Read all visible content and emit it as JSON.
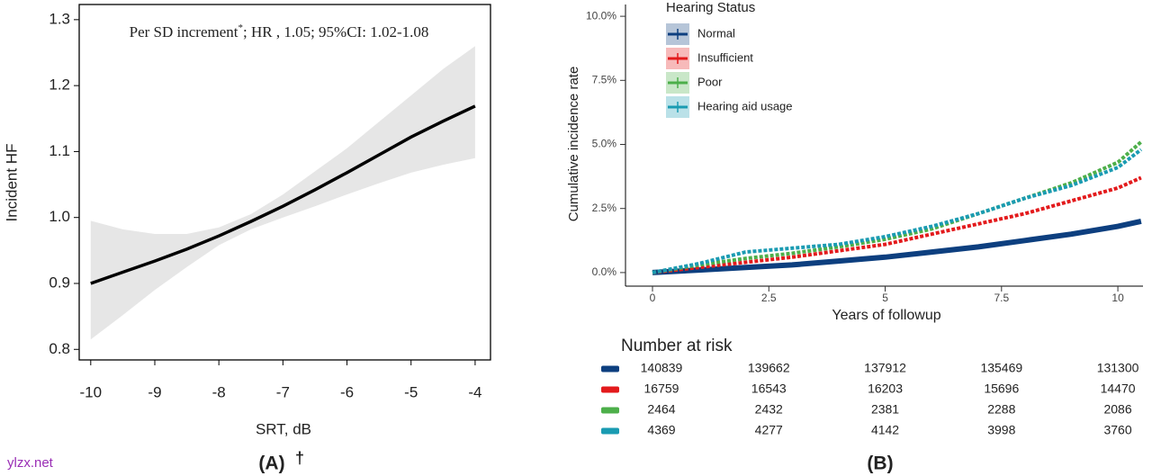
{
  "chart_data": [
    {
      "type": "line",
      "annotation": [
        "Per SD increment",
        "*",
        "; HR , 1.05; 95%CI: 1.02-1.08"
      ],
      "ylabel": "Incident HF",
      "xlabel": "SRT, dB",
      "caption": "(A)",
      "caption_mark": "†",
      "x": [
        -10,
        -9.5,
        -9,
        -8.5,
        -8,
        -7.5,
        -7,
        -6.5,
        -6,
        -5.5,
        -5,
        -4.5,
        -4
      ],
      "series": [
        {
          "color": "#000000",
          "values": [
            0.9,
            0.917,
            0.934,
            0.952,
            0.972,
            0.994,
            1.017,
            1.042,
            1.068,
            1.095,
            1.122,
            1.146,
            1.169
          ]
        }
      ],
      "band": {
        "color": "#e6e6e6",
        "lower": [
          0.815,
          0.852,
          0.89,
          0.925,
          0.958,
          0.982,
          1.0,
          1.017,
          1.035,
          1.052,
          1.068,
          1.08,
          1.09
        ],
        "upper": [
          0.995,
          0.982,
          0.975,
          0.975,
          0.985,
          1.005,
          1.035,
          1.07,
          1.105,
          1.145,
          1.185,
          1.225,
          1.26
        ]
      },
      "xlim": [
        -10.18,
        -3.76
      ],
      "ylim": [
        0.784,
        1.323
      ],
      "xticks": [
        -10,
        -9,
        -8,
        -7,
        -6,
        -5,
        -4
      ],
      "yticks": [
        0.8,
        0.9,
        {
          "value": 1,
          "label": "1.0"
        },
        1.1,
        1.2,
        1.3
      ]
    },
    {
      "type": "line",
      "legend_title": "Hearing Status",
      "ylabel": "Cumulative incidence rate",
      "xlabel": "Years of followup",
      "caption": "(B)",
      "x": [
        0,
        1,
        2,
        3,
        4,
        5,
        6,
        7,
        8,
        9,
        10,
        10.5
      ],
      "series": [
        {
          "name": "Normal",
          "color": "#0d3f7f",
          "values": [
            0,
            0.1,
            0.2,
            0.3,
            0.45,
            0.6,
            0.8,
            1.0,
            1.25,
            1.5,
            1.8,
            2.0
          ]
        },
        {
          "name": "Insufficient",
          "color": "#e31a1c",
          "values": [
            0,
            0.2,
            0.4,
            0.6,
            0.85,
            1.1,
            1.5,
            1.9,
            2.3,
            2.8,
            3.3,
            3.7
          ]
        },
        {
          "name": "Poor",
          "color": "#4daf4a",
          "values": [
            0,
            0.3,
            0.55,
            0.75,
            1.0,
            1.3,
            1.7,
            2.3,
            2.9,
            3.5,
            4.3,
            5.1
          ]
        },
        {
          "name": "Hearing aid usage",
          "color": "#1a9bb2",
          "values": [
            0,
            0.35,
            0.8,
            0.95,
            1.1,
            1.4,
            1.8,
            2.3,
            2.9,
            3.4,
            4.1,
            4.8
          ]
        }
      ],
      "xlim": [
        -0.58,
        10.54
      ],
      "ylim": [
        -0.53,
        10.46
      ],
      "xticks": [
        0,
        2.5,
        5,
        7.5,
        10
      ],
      "yticks": [
        {
          "value": 0,
          "label": "0.0%"
        },
        {
          "value": 2.5,
          "label": "2.5%"
        },
        {
          "value": 5,
          "label": "5.0%"
        },
        {
          "value": 7.5,
          "label": "7.5%"
        },
        {
          "value": 10,
          "label": "10.0%"
        }
      ],
      "risk_table": {
        "title": "Number at risk",
        "times": [
          0,
          2.5,
          5,
          7.5,
          10
        ],
        "rows": [
          [
            "140839",
            "139662",
            "137912",
            "135469",
            "131300"
          ],
          [
            "16759",
            "16543",
            "16203",
            "15696",
            "14470"
          ],
          [
            "2464",
            "2432",
            "2381",
            "2288",
            "2086"
          ],
          [
            "4369",
            "4277",
            "4142",
            "3998",
            "3760"
          ]
        ]
      }
    }
  ],
  "watermark": "ylzx.net"
}
